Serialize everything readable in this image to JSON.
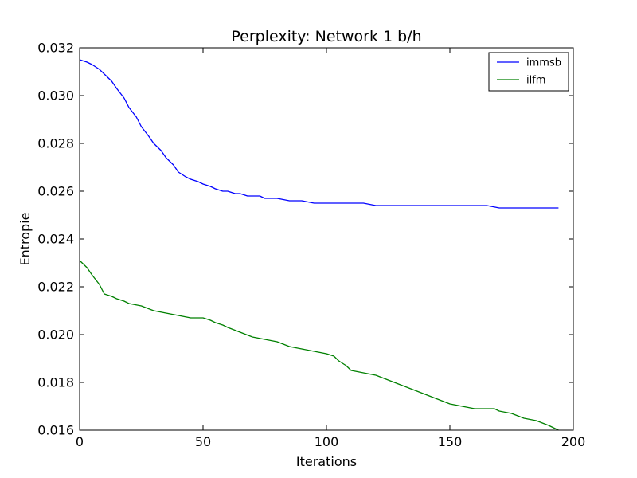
{
  "chart_data": {
    "type": "line",
    "title": "Perplexity: Network 1  b/h",
    "xlabel": "Iterations",
    "ylabel": "Entropie",
    "xlim": [
      0,
      200
    ],
    "ylim": [
      0.016,
      0.032
    ],
    "xticks": [
      "0",
      "50",
      "100",
      "150",
      "200"
    ],
    "yticks": [
      "0.016",
      "0.018",
      "0.020",
      "0.022",
      "0.024",
      "0.026",
      "0.028",
      "0.030",
      "0.032"
    ],
    "grid": false,
    "legend": "top-right",
    "series": [
      {
        "name": "immsb",
        "color": "#0000ff",
        "x": [
          0,
          3,
          5,
          8,
          10,
          13,
          15,
          18,
          20,
          23,
          25,
          28,
          30,
          33,
          35,
          38,
          40,
          43,
          45,
          48,
          50,
          53,
          55,
          58,
          60,
          63,
          65,
          68,
          70,
          73,
          75,
          78,
          80,
          85,
          90,
          95,
          100,
          105,
          110,
          115,
          120,
          125,
          130,
          135,
          140,
          145,
          150,
          155,
          160,
          165,
          170,
          175,
          180,
          185,
          190,
          194
        ],
        "y": [
          0.0315,
          0.0314,
          0.0313,
          0.0311,
          0.0309,
          0.0306,
          0.0303,
          0.0299,
          0.0295,
          0.0291,
          0.0287,
          0.0283,
          0.028,
          0.0277,
          0.0274,
          0.0271,
          0.0268,
          0.0266,
          0.0265,
          0.0264,
          0.0263,
          0.0262,
          0.0261,
          0.026,
          0.026,
          0.0259,
          0.0259,
          0.0258,
          0.0258,
          0.0258,
          0.0257,
          0.0257,
          0.0257,
          0.0256,
          0.0256,
          0.0255,
          0.0255,
          0.0255,
          0.0255,
          0.0255,
          0.0254,
          0.0254,
          0.0254,
          0.0254,
          0.0254,
          0.0254,
          0.0254,
          0.0254,
          0.0254,
          0.0254,
          0.0253,
          0.0253,
          0.0253,
          0.0253,
          0.0253,
          0.0253
        ]
      },
      {
        "name": "ilfm",
        "color": "#008000",
        "x": [
          0,
          3,
          5,
          8,
          10,
          13,
          15,
          18,
          20,
          25,
          30,
          35,
          40,
          45,
          50,
          53,
          55,
          58,
          60,
          65,
          70,
          75,
          80,
          85,
          90,
          95,
          100,
          103,
          105,
          108,
          110,
          115,
          120,
          125,
          130,
          135,
          140,
          145,
          150,
          155,
          160,
          165,
          168,
          170,
          175,
          180,
          185,
          190,
          194
        ],
        "y": [
          0.0231,
          0.0228,
          0.0225,
          0.0221,
          0.0217,
          0.0216,
          0.0215,
          0.0214,
          0.0213,
          0.0212,
          0.021,
          0.0209,
          0.0208,
          0.0207,
          0.0207,
          0.0206,
          0.0205,
          0.0204,
          0.0203,
          0.0201,
          0.0199,
          0.0198,
          0.0197,
          0.0195,
          0.0194,
          0.0193,
          0.0192,
          0.0191,
          0.0189,
          0.0187,
          0.0185,
          0.0184,
          0.0183,
          0.0181,
          0.0179,
          0.0177,
          0.0175,
          0.0173,
          0.0171,
          0.017,
          0.0169,
          0.0169,
          0.0169,
          0.0168,
          0.0167,
          0.0165,
          0.0164,
          0.0162,
          0.016
        ]
      }
    ]
  }
}
